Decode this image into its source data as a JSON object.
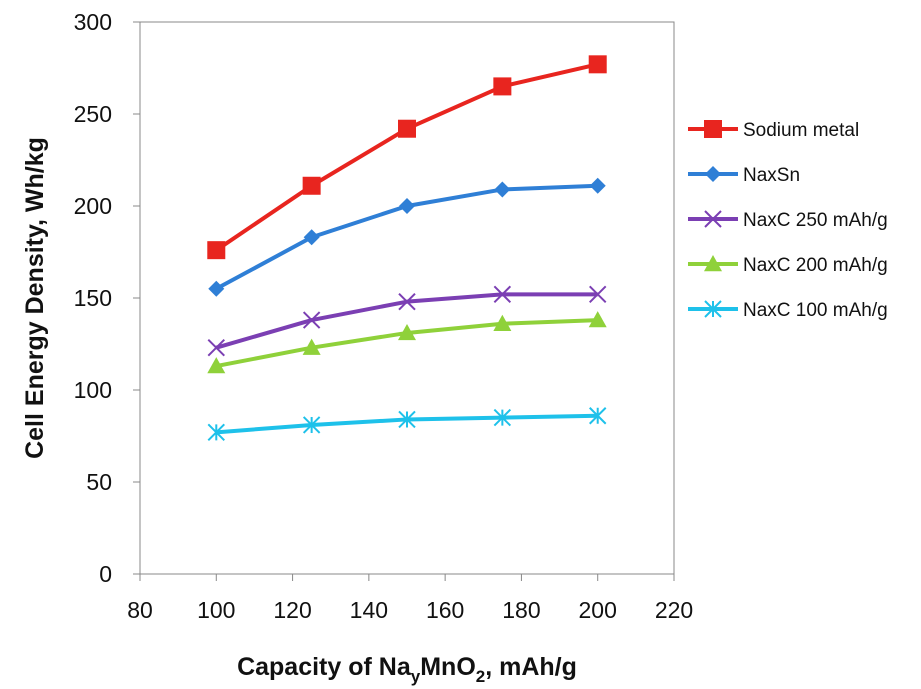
{
  "chart_data": {
    "type": "line",
    "title": "",
    "xlabel": "Capacity of NayMnO2, mAh/g",
    "xlabel_parts": {
      "main": "Capacity of Na",
      "sub1": "y",
      "mid": "MnO",
      "sub2": "2",
      "tail": ", mAh/g"
    },
    "ylabel": "Cell Energy Density, Wh/kg",
    "xlim": [
      80,
      220
    ],
    "ylim": [
      0,
      300
    ],
    "xticks": [
      80,
      100,
      120,
      140,
      160,
      180,
      200,
      220
    ],
    "yticks": [
      0,
      50,
      100,
      150,
      200,
      250,
      300
    ],
    "grid": false,
    "legend_position": "right",
    "x": [
      100,
      125,
      150,
      175,
      200
    ],
    "series": [
      {
        "name": "Sodium metal",
        "values": [
          176,
          211,
          242,
          265,
          277
        ],
        "color": "#e8251f",
        "marker": "square"
      },
      {
        "name": "NaxSn",
        "values": [
          155,
          183,
          200,
          209,
          211
        ],
        "color": "#2f7fd6",
        "marker": "diamond"
      },
      {
        "name": "NaxC 250 mAh/g",
        "values": [
          123,
          138,
          148,
          152,
          152
        ],
        "color": "#7b3fb3",
        "marker": "x"
      },
      {
        "name": "NaxC 200 mAh/g",
        "values": [
          113,
          123,
          131,
          136,
          138
        ],
        "color": "#8fd13a",
        "marker": "triangle"
      },
      {
        "name": "NaxC 100 mAh/g",
        "values": [
          77,
          81,
          84,
          85,
          86
        ],
        "color": "#1ec1ea",
        "marker": "star"
      }
    ]
  }
}
